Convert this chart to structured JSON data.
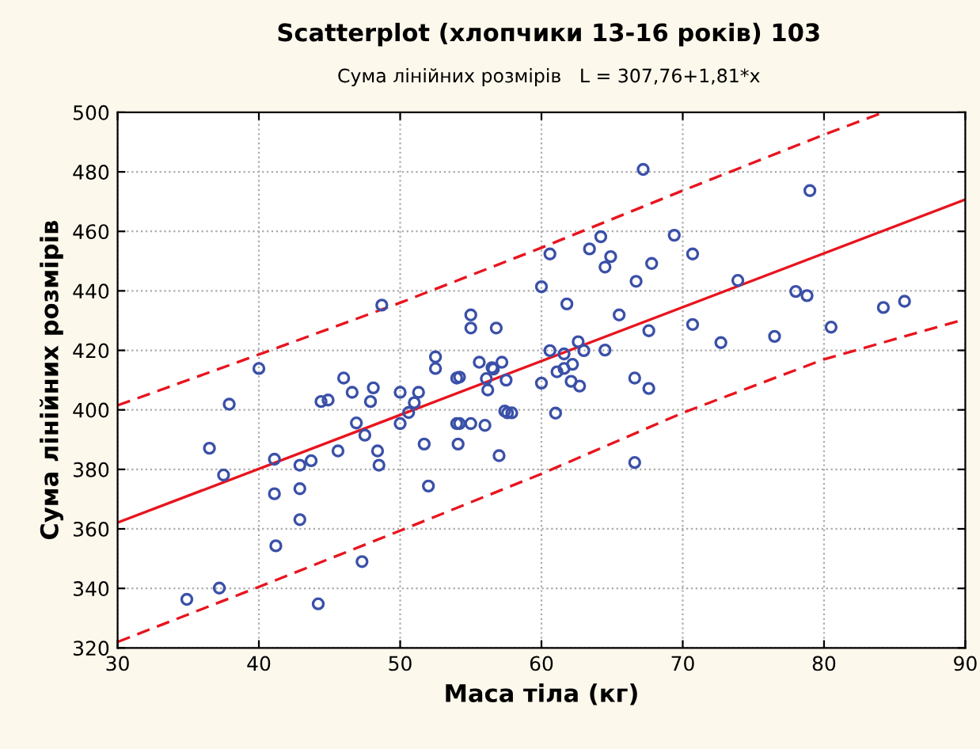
{
  "chart_data": {
    "type": "scatter",
    "title": "Scatterplot (хлопчики 13-16 років) 103",
    "subtitle": "Сума лінійних розмірів   L = 307,76+1,81*x",
    "xlabel": "Маса тіла (кг)",
    "ylabel": "Сума лінійних розмірів",
    "xlim": [
      30,
      90
    ],
    "ylim": [
      320,
      500
    ],
    "xticks": [
      30,
      40,
      50,
      60,
      70,
      80,
      90
    ],
    "yticks": [
      320,
      340,
      360,
      380,
      400,
      420,
      440,
      460,
      480,
      500
    ],
    "grid": true,
    "legend": false,
    "series": [
      {
        "color": "#3a50a8",
        "marker": "circle",
        "x": [
          37.9,
          36.5,
          37.5,
          34.9,
          37.2,
          41.1,
          41.1,
          42.9,
          42.9,
          42.9,
          43.7,
          41.2,
          44.2,
          47.3,
          45.6,
          46.9,
          47.5,
          48.4,
          48.5,
          44.4,
          44.9,
          46.6,
          47.9,
          48.1,
          46.0,
          50.0,
          50.0,
          50.6,
          51.0,
          51.3,
          51.7,
          52.0,
          54.0,
          54.2,
          55.0,
          54.1,
          56.0,
          56.2,
          57.0,
          57.4,
          57.6,
          57.9,
          57.5,
          54.2,
          61.0,
          66.6,
          60.0,
          62.1,
          62.7,
          66.6,
          67.6,
          67.2,
          79.0,
          64.2,
          69.4,
          63.4,
          60.6,
          64.9,
          64.5,
          67.8,
          70.7,
          66.7,
          73.9,
          60.0,
          61.8,
          78.0,
          78.8,
          65.5,
          84.2,
          85.7,
          56.8,
          67.6,
          70.7,
          80.5,
          72.7,
          76.5,
          62.6,
          60.6,
          61.6,
          63.0,
          64.5,
          62.2,
          61.1,
          61.6,
          55.6,
          56.5,
          57.2,
          56.1,
          48.7,
          40.0,
          55.0,
          55.0,
          52.5,
          52.5,
          54.0,
          56.6
        ],
        "values": [
          401.9,
          387.1,
          378.1,
          336.3,
          340.1,
          383.4,
          371.8,
          381.4,
          373.5,
          363.1,
          382.9,
          354.3,
          334.8,
          349.0,
          386.2,
          395.6,
          391.5,
          386.2,
          381.4,
          402.8,
          403.3,
          405.9,
          402.8,
          407.4,
          410.7,
          405.9,
          395.4,
          399.1,
          402.4,
          405.9,
          388.5,
          374.4,
          395.4,
          395.4,
          395.4,
          388.5,
          394.8,
          406.7,
          384.6,
          399.6,
          399.0,
          399.0,
          410.0,
          411.0,
          398.9,
          382.3,
          409.0,
          409.6,
          408.0,
          410.7,
          407.2,
          480.8,
          473.7,
          458.2,
          458.7,
          454.1,
          452.4,
          451.5,
          448.0,
          449.2,
          452.4,
          443.2,
          443.5,
          441.4,
          435.6,
          439.8,
          438.4,
          431.9,
          434.4,
          436.5,
          427.5,
          426.6,
          428.7,
          427.8,
          422.6,
          424.7,
          422.9,
          419.9,
          418.8,
          419.9,
          420.1,
          415.3,
          412.8,
          413.9,
          416.0,
          414.2,
          416.0,
          410.5,
          435.2,
          413.9,
          431.9,
          427.5,
          417.8,
          413.9,
          410.7,
          413.7
        ]
      },
      {
        "type": "line",
        "color": "#e8141e",
        "line_style": "solid",
        "x": [
          30,
          90
        ],
        "values": [
          362.1,
          470.7
        ]
      },
      {
        "type": "line",
        "color": "#e8141e",
        "line_style": "dashed",
        "x": [
          30,
          40,
          50,
          60,
          70,
          80,
          84.2
        ],
        "values": [
          401.5,
          418.6,
          436,
          454.5,
          473.7,
          492.5,
          500
        ]
      },
      {
        "type": "line",
        "color": "#e8141e",
        "line_style": "dashed",
        "x": [
          30,
          40,
          50,
          60,
          70,
          80,
          90
        ],
        "values": [
          322,
          340.5,
          359.4,
          378.5,
          399,
          417,
          430.5
        ]
      }
    ]
  }
}
